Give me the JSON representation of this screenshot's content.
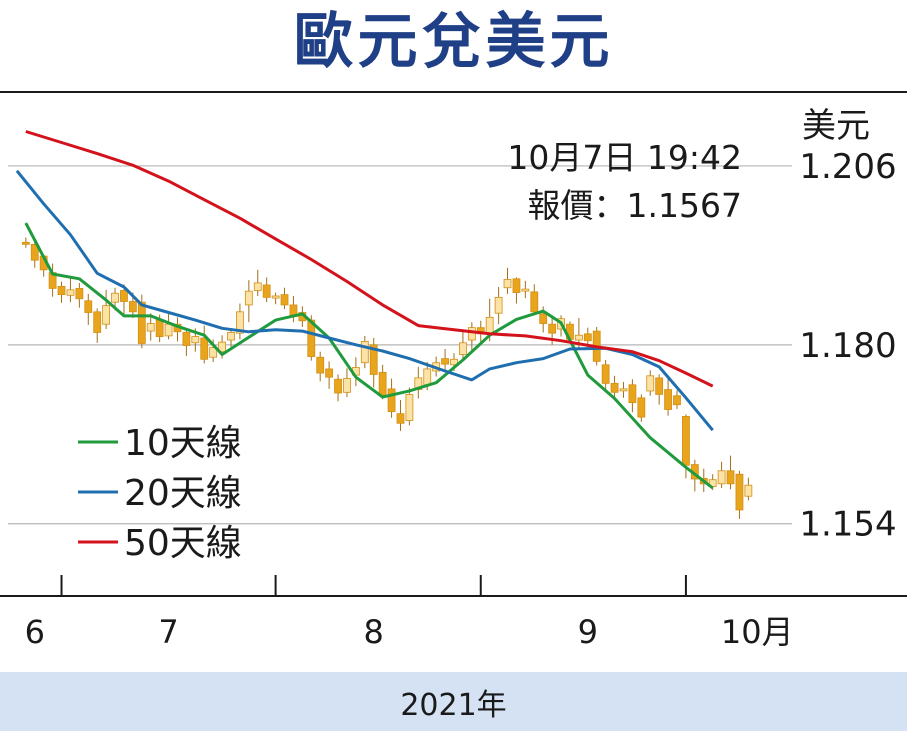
{
  "title": "歐元兌美元",
  "quote": {
    "datetime": "10月7日 19:42",
    "price_line": "報價：1.1567"
  },
  "footer": {
    "year": "2021年"
  },
  "colors": {
    "title": "#1f3f86",
    "ma10": "#1f9a3c",
    "ma20": "#1f6fb0",
    "ma50": "#d3121c",
    "candle_up": "#f6b43b",
    "candle_down": "#e9a41d",
    "grid": "#b5b5b5",
    "footer_bg": "#d4e2f4"
  },
  "chart_data": {
    "type": "line",
    "y_unit": "美元",
    "ylim": [
      1.1435,
      1.2166
    ],
    "y_ticks": [
      "1.206",
      "1.180",
      "1.154"
    ],
    "y_tick_values": [
      1.206,
      1.18,
      1.154
    ],
    "x_ticks": [
      "6",
      "7",
      "8",
      "9",
      "10月"
    ],
    "x_range": [
      0,
      100
    ],
    "month_boundaries": [
      6,
      30,
      53,
      76
    ],
    "x_label_positions": [
      3,
      18,
      41,
      65,
      84
    ],
    "legend": [
      {
        "label": "10天線",
        "color": "#1f9a3c"
      },
      {
        "label": "20天線",
        "color": "#1f6fb0"
      },
      {
        "label": "50天線",
        "color": "#d3121c"
      }
    ],
    "series": [
      {
        "name": "10天線",
        "color": "#1f9a3c",
        "points": [
          [
            2,
            1.1977
          ],
          [
            5,
            1.1903
          ],
          [
            8,
            1.1896
          ],
          [
            11,
            1.1865
          ],
          [
            13,
            1.1842
          ],
          [
            16,
            1.1842
          ],
          [
            19,
            1.1827
          ],
          [
            22,
            1.1814
          ],
          [
            24,
            1.1786
          ],
          [
            27,
            1.1811
          ],
          [
            30,
            1.1836
          ],
          [
            33,
            1.1845
          ],
          [
            36,
            1.181
          ],
          [
            39,
            1.1753
          ],
          [
            42,
            1.1724
          ],
          [
            45,
            1.1733
          ],
          [
            48,
            1.1745
          ],
          [
            51,
            1.1778
          ],
          [
            54,
            1.1814
          ],
          [
            57,
            1.1837
          ],
          [
            60,
            1.1849
          ],
          [
            62,
            1.1832
          ],
          [
            65,
            1.1756
          ],
          [
            68,
            1.1722
          ],
          [
            72,
            1.1665
          ],
          [
            76,
            1.1622
          ],
          [
            79,
            1.1592
          ]
        ]
      },
      {
        "name": "20天線",
        "color": "#1f6fb0",
        "points": [
          [
            1,
            1.2053
          ],
          [
            4,
            1.2005
          ],
          [
            7,
            1.196
          ],
          [
            10,
            1.1904
          ],
          [
            13,
            1.1884
          ],
          [
            15,
            1.1858
          ],
          [
            18,
            1.1847
          ],
          [
            21,
            1.1836
          ],
          [
            24,
            1.1824
          ],
          [
            27,
            1.1819
          ],
          [
            30,
            1.1822
          ],
          [
            33,
            1.182
          ],
          [
            36,
            1.181
          ],
          [
            39,
            1.18
          ],
          [
            42,
            1.1791
          ],
          [
            45,
            1.178
          ],
          [
            49,
            1.1762
          ],
          [
            52,
            1.1749
          ],
          [
            54,
            1.1765
          ],
          [
            57,
            1.1774
          ],
          [
            60,
            1.178
          ],
          [
            63,
            1.1794
          ],
          [
            67,
            1.1795
          ],
          [
            70,
            1.1786
          ],
          [
            73,
            1.1768
          ],
          [
            76,
            1.1723
          ],
          [
            79,
            1.1676
          ]
        ]
      },
      {
        "name": "50天線",
        "color": "#d3121c",
        "points": [
          [
            2,
            1.211
          ],
          [
            6,
            1.2094
          ],
          [
            10,
            1.2078
          ],
          [
            14,
            1.2061
          ],
          [
            18,
            1.2038
          ],
          [
            22,
            1.2011
          ],
          [
            26,
            1.1984
          ],
          [
            30,
            1.1954
          ],
          [
            34,
            1.1924
          ],
          [
            38,
            1.1892
          ],
          [
            42,
            1.1858
          ],
          [
            46,
            1.1828
          ],
          [
            50,
            1.1822
          ],
          [
            54,
            1.1816
          ],
          [
            58,
            1.1813
          ],
          [
            62,
            1.1806
          ],
          [
            66,
            1.1797
          ],
          [
            70,
            1.179
          ],
          [
            73,
            1.1777
          ],
          [
            76,
            1.1759
          ],
          [
            79,
            1.174
          ]
        ]
      }
    ],
    "candles": [
      [
        2,
        1.1949,
        1.1947,
        1.1941,
        1.1956
      ],
      [
        3,
        1.1946,
        1.1923,
        1.1912,
        1.1954
      ],
      [
        4,
        1.1929,
        1.1909,
        1.1899,
        1.1931
      ],
      [
        5,
        1.1905,
        1.1882,
        1.187,
        1.1918
      ],
      [
        6,
        1.1885,
        1.1873,
        1.1861,
        1.1892
      ],
      [
        7,
        1.1872,
        1.188,
        1.1862,
        1.1898
      ],
      [
        8,
        1.1882,
        1.1867,
        1.1854,
        1.189
      ],
      [
        9,
        1.1864,
        1.1847,
        1.1829,
        1.1874
      ],
      [
        10,
        1.1848,
        1.1818,
        1.1803,
        1.1853
      ],
      [
        11,
        1.183,
        1.1857,
        1.1823,
        1.188
      ],
      [
        12,
        1.1862,
        1.1875,
        1.185,
        1.1883
      ],
      [
        13,
        1.1879,
        1.1863,
        1.1844,
        1.1888
      ],
      [
        14,
        1.1863,
        1.1848,
        1.1839,
        1.1876
      ],
      [
        15,
        1.1862,
        1.1802,
        1.1795,
        1.1873
      ],
      [
        16,
        1.182,
        1.1831,
        1.1806,
        1.1846
      ],
      [
        17,
        1.1836,
        1.1812,
        1.1804,
        1.1844
      ],
      [
        18,
        1.1813,
        1.183,
        1.1808,
        1.1846
      ],
      [
        19,
        1.183,
        1.1819,
        1.1805,
        1.184
      ],
      [
        20,
        1.1818,
        1.1799,
        1.1784,
        1.1822
      ],
      [
        21,
        1.1803,
        1.1812,
        1.179,
        1.1824
      ],
      [
        22,
        1.181,
        1.1779,
        1.1773,
        1.1828
      ],
      [
        23,
        1.1782,
        1.1796,
        1.1775,
        1.1808
      ],
      [
        24,
        1.179,
        1.1804,
        1.178,
        1.1814
      ],
      [
        25,
        1.1807,
        1.1818,
        1.1797,
        1.1822
      ],
      [
        26,
        1.1817,
        1.1848,
        1.1808,
        1.186
      ],
      [
        27,
        1.1858,
        1.1878,
        1.1833,
        1.1894
      ],
      [
        28,
        1.1879,
        1.189,
        1.1871,
        1.1909
      ],
      [
        29,
        1.1887,
        1.1869,
        1.1862,
        1.1898
      ],
      [
        30,
        1.1868,
        1.1871,
        1.1859,
        1.1876
      ],
      [
        31,
        1.1873,
        1.1858,
        1.1852,
        1.1883
      ],
      [
        32,
        1.1858,
        1.1841,
        1.1833,
        1.1871
      ],
      [
        33,
        1.1847,
        1.1835,
        1.1826,
        1.1856
      ],
      [
        34,
        1.1836,
        1.1783,
        1.1777,
        1.1843
      ],
      [
        35,
        1.1782,
        1.1759,
        1.1747,
        1.179
      ],
      [
        36,
        1.1765,
        1.1753,
        1.1736,
        1.1776
      ],
      [
        37,
        1.175,
        1.173,
        1.1718,
        1.1757
      ],
      [
        38,
        1.1731,
        1.1751,
        1.1724,
        1.1766
      ],
      [
        39,
        1.1756,
        1.1767,
        1.174,
        1.1782
      ],
      [
        40,
        1.1774,
        1.1805,
        1.1766,
        1.1813
      ],
      [
        41,
        1.18,
        1.1757,
        1.1738,
        1.181
      ],
      [
        42,
        1.176,
        1.1727,
        1.1721,
        1.1771
      ],
      [
        43,
        1.1736,
        1.1703,
        1.1694,
        1.1751
      ],
      [
        44,
        1.17,
        1.1686,
        1.1675,
        1.172
      ],
      [
        45,
        1.169,
        1.1728,
        1.1683,
        1.1738
      ],
      [
        46,
        1.1735,
        1.1752,
        1.1722,
        1.1768
      ],
      [
        47,
        1.1742,
        1.1765,
        1.1734,
        1.1775
      ],
      [
        48,
        1.1762,
        1.1774,
        1.1754,
        1.1783
      ],
      [
        49,
        1.178,
        1.1772,
        1.1764,
        1.1794
      ],
      [
        50,
        1.1771,
        1.1779,
        1.1762,
        1.1788
      ],
      [
        51,
        1.1786,
        1.1803,
        1.1777,
        1.1819
      ],
      [
        52,
        1.1807,
        1.1825,
        1.1791,
        1.1833
      ],
      [
        53,
        1.1825,
        1.1816,
        1.1803,
        1.1835
      ],
      [
        54,
        1.1815,
        1.184,
        1.1805,
        1.1867
      ],
      [
        55,
        1.1846,
        1.1869,
        1.183,
        1.1884
      ],
      [
        56,
        1.1883,
        1.1895,
        1.1874,
        1.1912
      ],
      [
        57,
        1.1896,
        1.1876,
        1.186,
        1.1898
      ],
      [
        58,
        1.188,
        1.1881,
        1.1868,
        1.1893
      ],
      [
        59,
        1.1877,
        1.1848,
        1.1843,
        1.1888
      ],
      [
        60,
        1.1845,
        1.1831,
        1.1818,
        1.1856
      ],
      [
        61,
        1.183,
        1.1817,
        1.18,
        1.1843
      ],
      [
        62,
        1.1823,
        1.1838,
        1.1812,
        1.1843
      ],
      [
        63,
        1.183,
        1.1808,
        1.1802,
        1.1834
      ],
      [
        64,
        1.1807,
        1.1814,
        1.1796,
        1.1839
      ],
      [
        65,
        1.1816,
        1.1806,
        1.1794,
        1.1825
      ],
      [
        66,
        1.182,
        1.1776,
        1.177,
        1.1826
      ],
      [
        67,
        1.1771,
        1.1744,
        1.1732,
        1.1778
      ],
      [
        68,
        1.1744,
        1.1731,
        1.1719,
        1.1755
      ],
      [
        69,
        1.1736,
        1.1736,
        1.1723,
        1.1746
      ],
      [
        70,
        1.1742,
        1.1716,
        1.1702,
        1.175
      ],
      [
        71,
        1.1723,
        1.1695,
        1.1688,
        1.1728
      ],
      [
        72,
        1.1733,
        1.1755,
        1.1726,
        1.1763
      ],
      [
        73,
        1.1752,
        1.1728,
        1.1713,
        1.1757
      ],
      [
        74,
        1.1735,
        1.1706,
        1.1697,
        1.1752
      ],
      [
        75,
        1.1726,
        1.1713,
        1.1707,
        1.1734
      ],
      [
        76,
        1.1696,
        1.1625,
        1.1606,
        1.1699
      ],
      [
        77,
        1.1626,
        1.1605,
        1.1587,
        1.1633
      ],
      [
        78,
        1.1606,
        1.1598,
        1.1586,
        1.162
      ],
      [
        79,
        1.1594,
        1.1604,
        1.1589,
        1.1612
      ],
      [
        80,
        1.1598,
        1.1617,
        1.1592,
        1.163
      ],
      [
        81,
        1.1617,
        1.1598,
        1.159,
        1.1639
      ],
      [
        82,
        1.1612,
        1.156,
        1.1547,
        1.1617
      ],
      [
        83,
        1.158,
        1.1596,
        1.1574,
        1.1607
      ]
    ]
  }
}
